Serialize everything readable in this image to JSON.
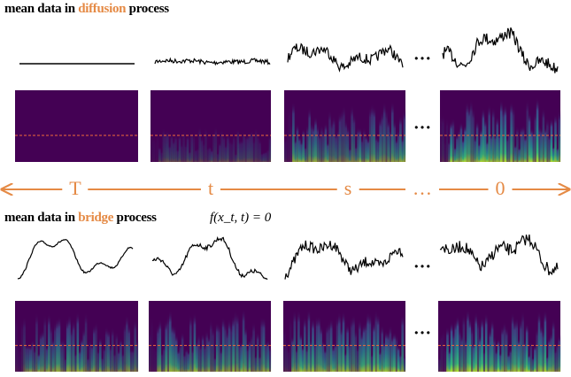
{
  "top_title": {
    "prefix": "mean data in ",
    "highlight": "diffusion",
    "suffix": " process"
  },
  "bottom_title": {
    "prefix": "mean data in ",
    "highlight": "bridge",
    "suffix": " process"
  },
  "formula": "f(x_t, t) = 0",
  "ellipsis": "…",
  "timeline": [
    "T",
    "t",
    "s",
    "…",
    "0"
  ]
}
